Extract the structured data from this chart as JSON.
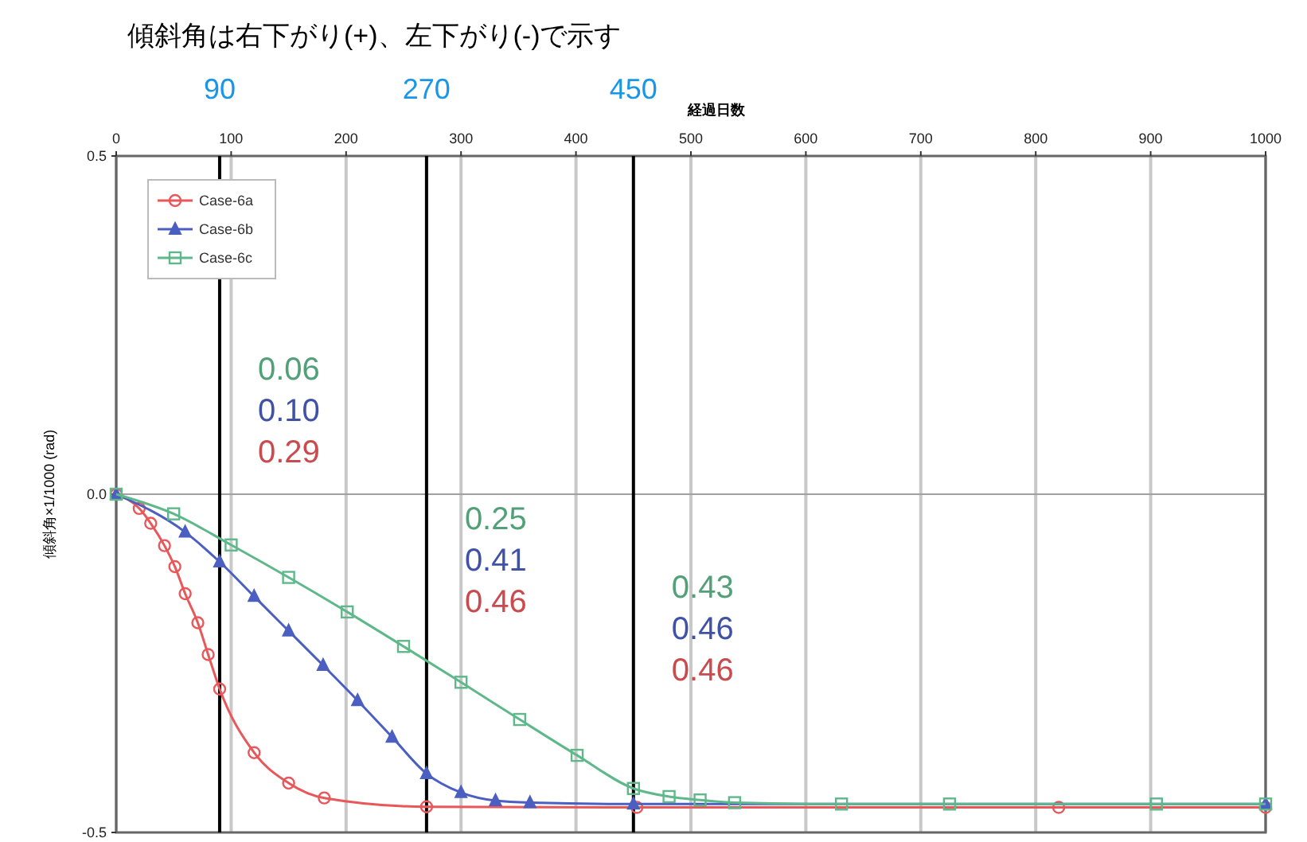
{
  "chart_data": {
    "type": "line",
    "title": "傾斜角は右下がり(+)、左下がり(-)で示す",
    "xlabel": "経過日数",
    "ylabel": "傾斜角×1/1000 (rad)",
    "xlim": [
      0,
      1000
    ],
    "xticks": [
      0,
      100,
      200,
      300,
      400,
      500,
      600,
      700,
      800,
      900,
      1000
    ],
    "ylim": [
      -0.5,
      0.5
    ],
    "yticks": [
      {
        "value": 0.5,
        "label": "0.5"
      },
      {
        "value": 0,
        "label": "0.0"
      },
      {
        "value": -0.5,
        "label": "-0.5"
      }
    ],
    "grid": true,
    "legend": "top left",
    "ref_lines": [
      {
        "axis": "x",
        "value": 90,
        "label": "90",
        "color": "#000000"
      },
      {
        "axis": "x",
        "value": 270,
        "label": "270",
        "color": "#000000"
      },
      {
        "axis": "x",
        "value": 450,
        "label": "450",
        "color": "#000000"
      }
    ],
    "annotations": [
      "0.06",
      "0.10",
      "0.29",
      "0.25",
      "0.41",
      "0.46",
      "0.43",
      "0.46",
      "0.46"
    ],
    "series": [
      {
        "name": "Case-6a",
        "color": "#e8575a",
        "marker": "circle",
        "x": [
          0,
          20,
          30,
          42,
          51,
          60,
          71,
          80,
          90,
          120,
          150,
          181,
          270,
          453,
          820,
          1000
        ],
        "values": [
          0,
          -0.021,
          -0.043,
          -0.076,
          -0.107,
          -0.147,
          -0.19,
          -0.237,
          -0.288,
          -0.382,
          -0.427,
          -0.449,
          -0.462,
          -0.463,
          -0.463,
          -0.463
        ]
      },
      {
        "name": "Case-6b",
        "color": "#4a5fc1",
        "marker": "triangle",
        "x": [
          0,
          60,
          90,
          120,
          150,
          180,
          210,
          240,
          270,
          300,
          330,
          360,
          450,
          1000
        ],
        "values": [
          0,
          -0.056,
          -0.1,
          -0.151,
          -0.202,
          -0.253,
          -0.305,
          -0.359,
          -0.413,
          -0.441,
          -0.453,
          -0.456,
          -0.458,
          -0.458
        ]
      },
      {
        "name": "Case-6c",
        "color": "#5fb88a",
        "marker": "square",
        "x": [
          0,
          50,
          100,
          150,
          201,
          250,
          300,
          351,
          401,
          450,
          481,
          508,
          538,
          631,
          725,
          905,
          1000
        ],
        "values": [
          0,
          -0.029,
          -0.075,
          -0.123,
          -0.174,
          -0.225,
          -0.278,
          -0.333,
          -0.386,
          -0.435,
          -0.447,
          -0.452,
          -0.456,
          -0.458,
          -0.458,
          -0.458,
          -0.458
        ]
      }
    ]
  }
}
